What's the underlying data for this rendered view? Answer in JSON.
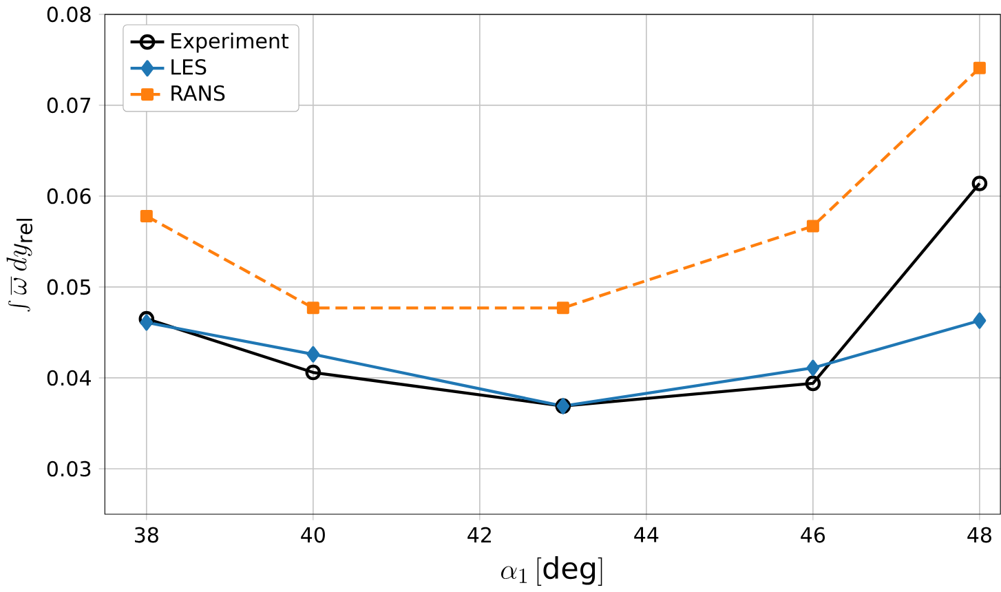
{
  "chart_data": {
    "type": "line",
    "xlabel": "\\alpha_1\\,[\\mathrm{deg}]",
    "ylabel": "\\int \\overline{\\omega}\\, dy_{\\mathrm{rel}}",
    "x": [
      38,
      40,
      43,
      46,
      48
    ],
    "series": [
      {
        "name": "Experiment",
        "color": "#000000",
        "marker": "circle",
        "line_style": "solid",
        "values": [
          0.0465,
          0.0406,
          0.0369,
          0.0394,
          0.0614
        ]
      },
      {
        "name": "LES",
        "color": "#1f77b4",
        "marker": "diamond",
        "line_style": "solid",
        "values": [
          0.0461,
          0.0426,
          0.0369,
          0.0411,
          0.0463
        ]
      },
      {
        "name": "RANS",
        "color": "#ff7f0e",
        "marker": "square",
        "line_style": "dashed",
        "values": [
          0.0578,
          0.0477,
          0.0477,
          0.0567,
          0.0741
        ]
      }
    ],
    "xlim": [
      37.5,
      48.25
    ],
    "ylim": [
      0.025,
      0.08
    ],
    "xticks": [
      38,
      40,
      42,
      44,
      46,
      48
    ],
    "yticks": [
      0.03,
      0.04,
      0.05,
      0.06,
      0.07,
      0.08
    ],
    "grid": true,
    "legend": "top left"
  }
}
